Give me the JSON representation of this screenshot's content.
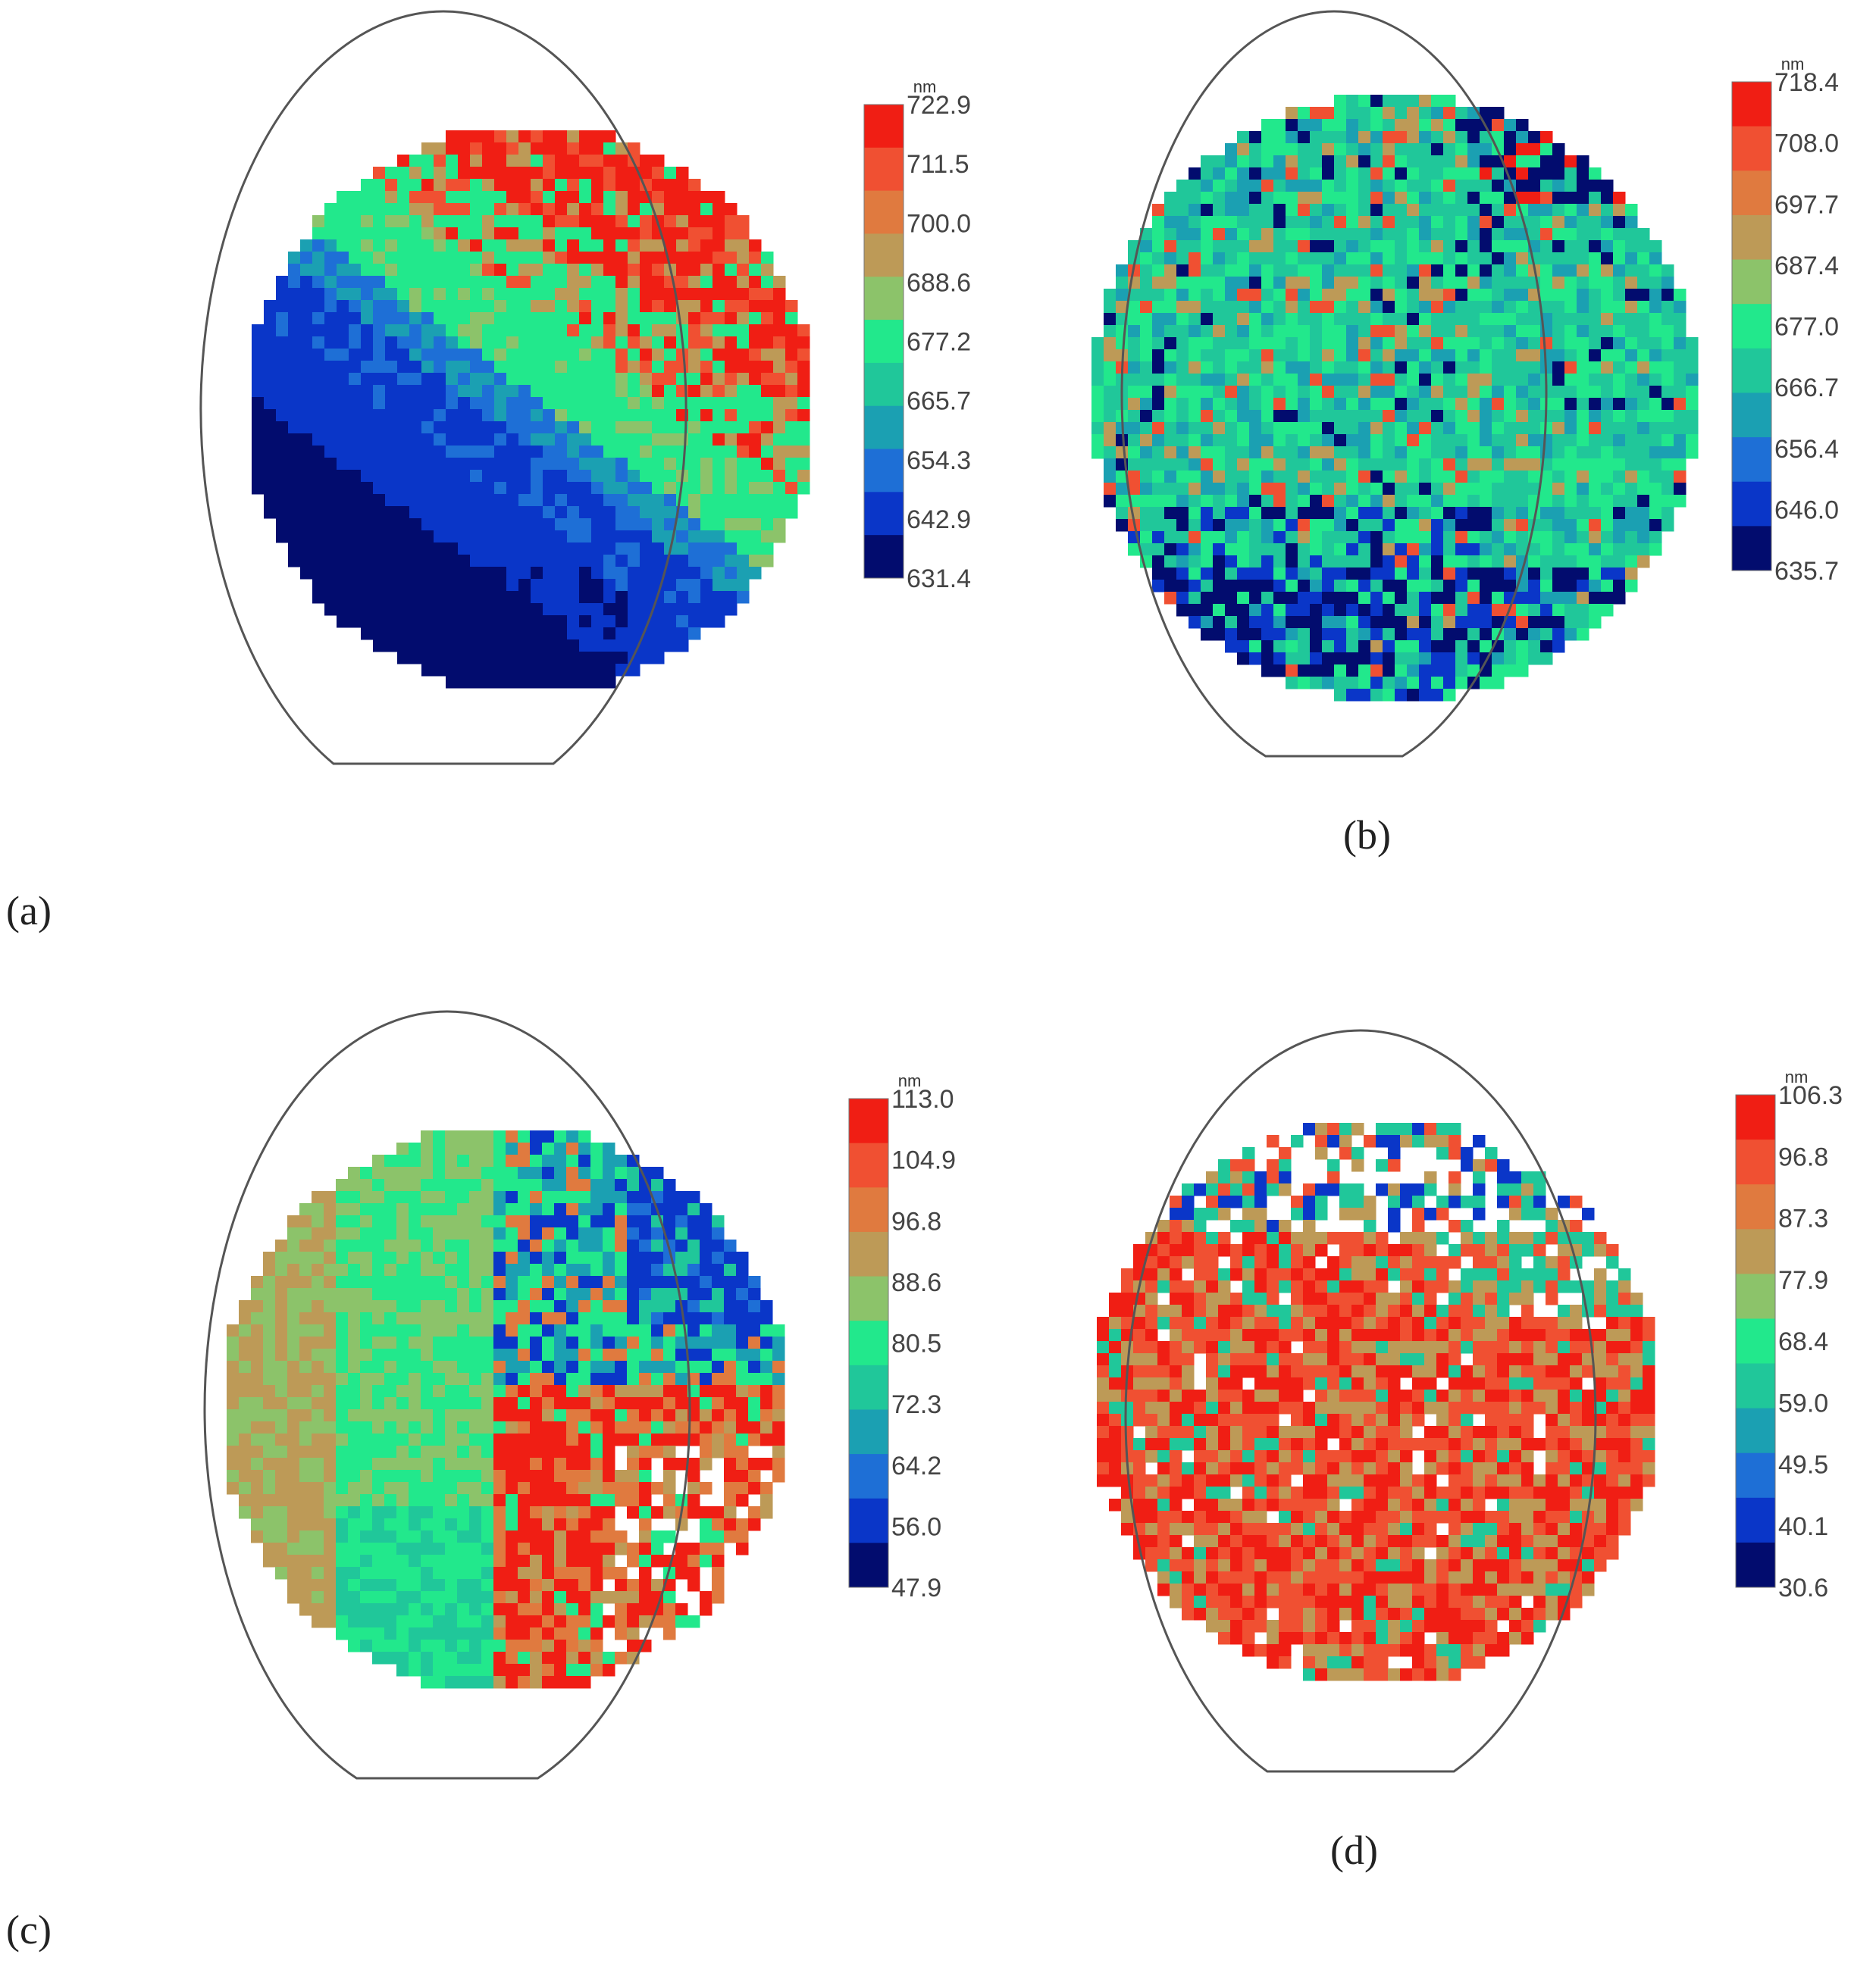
{
  "colors": {
    "scale": [
      "#020c6e",
      "#0a36c8",
      "#1e6fd6",
      "#1ba0b2",
      "#20c79a",
      "#22e88c",
      "#8cc36a",
      "#bd9a57",
      "#e07a3f",
      "#f05032",
      "#f01e14"
    ],
    "outline": "#555555",
    "empty": "#ffffff"
  },
  "chart_data": [
    {
      "panel": "(a)",
      "type": "heatmap",
      "unit": "nm",
      "colorbar_ticks": [
        "722.9",
        "711.5",
        "700.0",
        "688.6",
        "677.2",
        "665.7",
        "654.3",
        "642.9",
        "631.4"
      ],
      "range": [
        631.4,
        722.9
      ],
      "pattern": "thicker (red/orange) toward upper-right, mid (green) across upper-left, thinner (dark blue) toward lower-left"
    },
    {
      "panel": "(b)",
      "type": "heatmap",
      "unit": "nm",
      "colorbar_ticks": [
        "718.4",
        "708.0",
        "697.7",
        "687.4",
        "677.0",
        "666.7",
        "656.4",
        "646.0",
        "635.7"
      ],
      "range": [
        635.7,
        718.4
      ],
      "pattern": "mostly uniform green-cyan with scattered dark-blue cells, dark-blue cluster at top-right edge and in lower area"
    },
    {
      "panel": "(c)",
      "type": "heatmap",
      "unit": "nm",
      "colorbar_ticks": [
        "113.0",
        "104.9",
        "96.8",
        "88.6",
        "80.5",
        "72.3",
        "64.2",
        "56.0",
        "47.9"
      ],
      "range": [
        47.9,
        113.0
      ],
      "pattern": "left half green/olive, lower-right red with white gaps, upper-right blue"
    },
    {
      "panel": "(d)",
      "type": "heatmap",
      "unit": "nm",
      "colorbar_ticks": [
        "106.3",
        "96.8",
        "87.3",
        "77.9",
        "68.4",
        "59.0",
        "49.5",
        "40.1",
        "30.6"
      ],
      "range": [
        30.6,
        106.3
      ],
      "pattern": "mostly orange-red and olive, cyan/green and sparse cells toward the top edge, scattered white gaps"
    }
  ]
}
